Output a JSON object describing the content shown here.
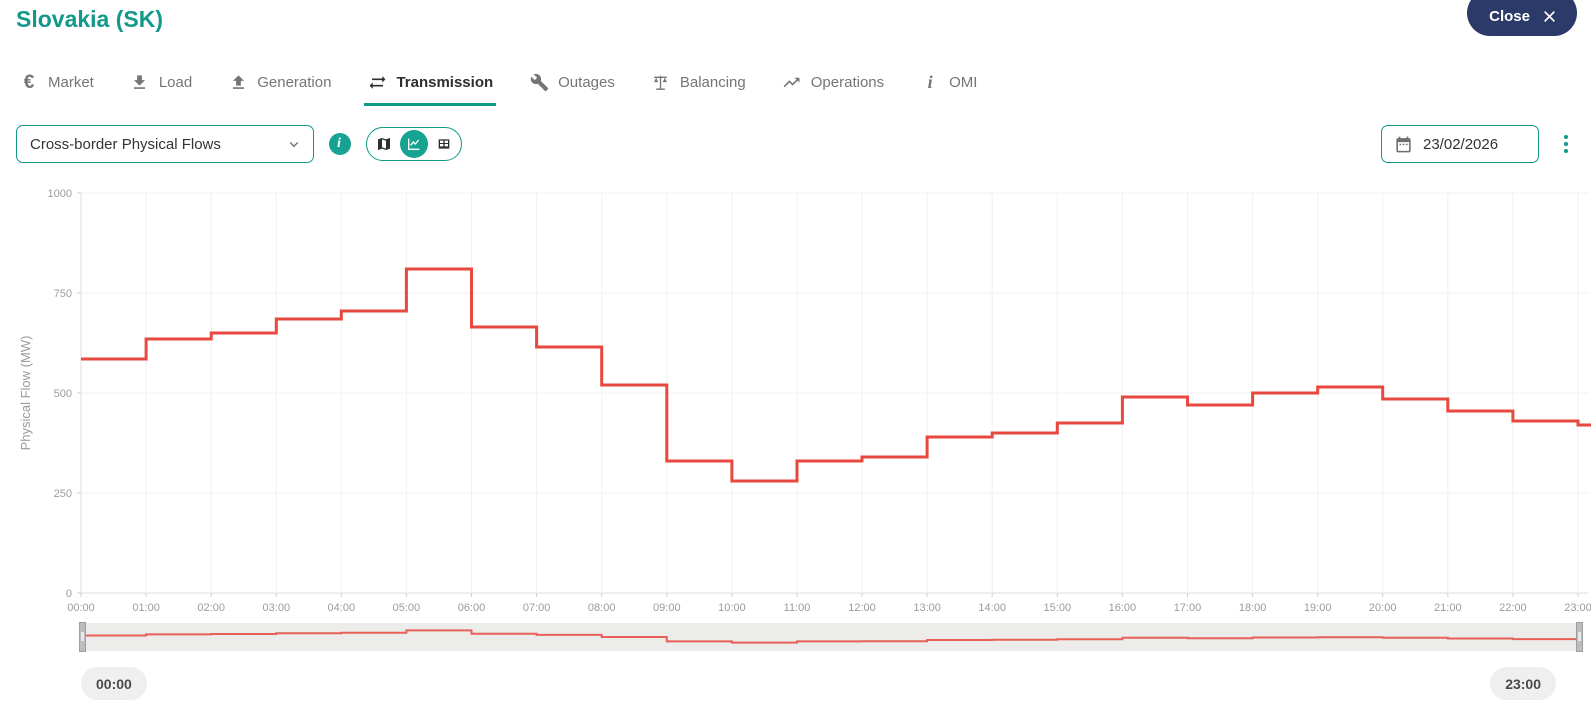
{
  "header": {
    "title": "Slovakia (SK)",
    "close_label": "Close"
  },
  "tabs": {
    "items": [
      {
        "label": "Market",
        "icon": "euro-icon",
        "active": false
      },
      {
        "label": "Load",
        "icon": "download-icon",
        "active": false
      },
      {
        "label": "Generation",
        "icon": "upload-icon",
        "active": false
      },
      {
        "label": "Transmission",
        "icon": "transfer-arrows-icon",
        "active": true
      },
      {
        "label": "Outages",
        "icon": "wrench-icon",
        "active": false
      },
      {
        "label": "Balancing",
        "icon": "scale-icon",
        "active": false
      },
      {
        "label": "Operations",
        "icon": "trending-icon",
        "active": false
      },
      {
        "label": "OMI",
        "icon": "info-italic-icon",
        "active": false
      }
    ]
  },
  "controls": {
    "dataset_select": {
      "value": "Cross-border Physical Flows"
    },
    "info_button": {
      "icon": "info-icon"
    },
    "view_toggle": {
      "options": [
        {
          "name": "map",
          "icon": "map-icon",
          "selected": false
        },
        {
          "name": "line-chart",
          "icon": "chart-line-icon",
          "selected": true
        },
        {
          "name": "table",
          "icon": "table-icon",
          "selected": false
        }
      ]
    },
    "date_picker": {
      "value": "23/02/2026",
      "icon": "calendar-icon"
    },
    "more_options": {
      "icon": "kebab-menu-icon"
    }
  },
  "chart_data": {
    "type": "line",
    "step": true,
    "title": "",
    "xlabel": "",
    "ylabel": "Physical Flow (MW)",
    "ylim": [
      0,
      1000
    ],
    "yticks": [
      0,
      250,
      500,
      750,
      1000
    ],
    "grid": true,
    "legend": false,
    "x": [
      "00:00",
      "01:00",
      "02:00",
      "03:00",
      "04:00",
      "05:00",
      "06:00",
      "07:00",
      "08:00",
      "09:00",
      "10:00",
      "11:00",
      "12:00",
      "13:00",
      "14:00",
      "15:00",
      "16:00",
      "17:00",
      "18:00",
      "19:00",
      "20:00",
      "21:00",
      "22:00",
      "23:00"
    ],
    "series": [
      {
        "name": "Cross-border Physical Flow",
        "color": "#E8493E",
        "values": [
          585,
          635,
          650,
          685,
          705,
          810,
          665,
          615,
          520,
          330,
          280,
          330,
          340,
          390,
          400,
          425,
          490,
          470,
          500,
          515,
          485,
          455,
          430,
          420
        ]
      }
    ]
  },
  "navigator": {
    "range_start": "00:00",
    "range_end": "23:00"
  },
  "colors": {
    "accent": "#12998A",
    "accent_fill": "#17A392",
    "close_navy": "#2C3A6A",
    "line_red": "#E8493E",
    "grid": "#F0F0F0",
    "axis_text": "#9B9B9B",
    "navigator_track": "#ECECEB"
  }
}
